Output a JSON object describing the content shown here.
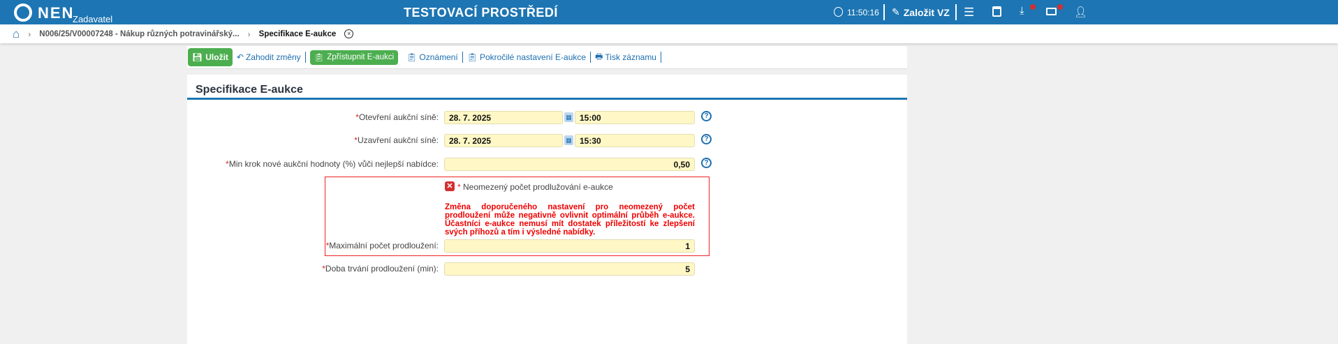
{
  "header": {
    "logo": "NEN",
    "role": "Zadavatel",
    "title": "TESTOVACÍ PROSTŘEDÍ",
    "time": "11:50:16",
    "create_label": "Založit VZ",
    "colors": {
      "bar": "#1d75b3",
      "badge": "#d32f2f"
    }
  },
  "breadcrumb": {
    "items": [
      "N006/25/V00007248 - Nákup různých potravinářský...",
      "Specifikace E-aukce"
    ]
  },
  "toolbar": {
    "save": "Uložit",
    "discard": "Zahodit změny",
    "publish": "Zpřístupnit E-aukci",
    "notice": "Oznámení",
    "advanced": "Pokročilé nastavení E-aukce",
    "print": "Tisk záznamu"
  },
  "form": {
    "title": "Specifikace E-aukce",
    "open_label": "Otevření aukční síně:",
    "open_date": "28. 7. 2025",
    "open_time": "15:00",
    "close_label": "Uzavření aukční síně:",
    "close_date": "28. 7. 2025",
    "close_time": "15:30",
    "step_label": "Min krok nové aukční hodnoty (%) vůči nejlepší nabídce:",
    "step_value": "0,50",
    "unlimited_label": "Neomezený počet prodlužování e-aukce",
    "unlimited_checked": false,
    "warning": "Změna doporučeného nastavení pro neomezený počet prodloužení může negativně ovlivnit optimální průběh e-aukce. Účastníci e-aukce nemusí mít dostatek příležitostí ke zlepšení svých příhozů a tím i výsledné nabídky.",
    "max_label": "Maximální počet prodloužení:",
    "max_value": "1",
    "duration_label": "Doba trvání prodloužení (min):",
    "duration_value": "5",
    "required_mark": "*",
    "help": "?"
  }
}
